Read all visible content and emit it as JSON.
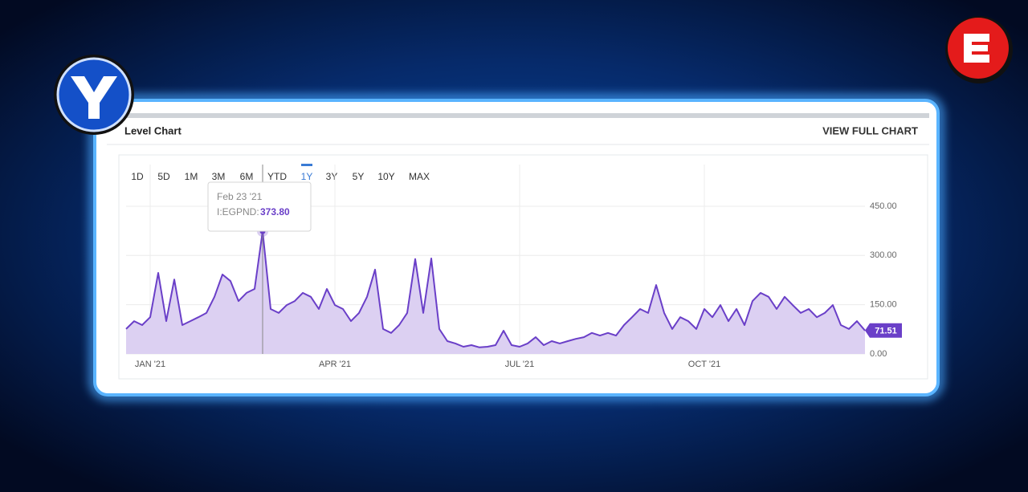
{
  "header": {
    "title": "Level Chart",
    "link": "VIEW FULL CHART"
  },
  "range_buttons": [
    "1D",
    "5D",
    "1M",
    "3M",
    "6M",
    "YTD",
    "1Y",
    "3Y",
    "5Y",
    "10Y",
    "MAX"
  ],
  "active_range": "1Y",
  "tooltip": {
    "date": "Feb 23 '21",
    "label": "I:EGPND:",
    "value": "373.80"
  },
  "chart_data": {
    "type": "line",
    "color": "#6a3fc8",
    "fill": "#dcd0f2",
    "categories": [
      null,
      null,
      null,
      "JAN '21",
      null,
      null,
      null,
      null,
      null,
      null,
      null,
      null,
      null,
      null,
      null,
      null,
      null,
      null,
      null,
      null,
      null,
      null,
      null,
      null,
      null,
      null,
      "APR '21",
      null,
      null,
      null,
      null,
      null,
      null,
      null,
      null,
      null,
      null,
      null,
      null,
      null,
      null,
      null,
      null,
      null,
      null,
      null,
      null,
      null,
      null,
      "JUL '21",
      null,
      null,
      null,
      null,
      null,
      null,
      null,
      null,
      null,
      null,
      null,
      null,
      null,
      null,
      null,
      null,
      null,
      null,
      null,
      null,
      null,
      null,
      "OCT '21",
      null,
      null,
      null,
      null,
      null,
      null,
      null,
      null,
      null,
      null,
      null,
      null,
      null,
      null,
      null,
      null,
      null,
      null,
      null,
      null
    ],
    "values": [
      76,
      100,
      88,
      112,
      247,
      100,
      227,
      88,
      100,
      112,
      125,
      174,
      242,
      222,
      161,
      186,
      198,
      373.8,
      137,
      125,
      149,
      161,
      186,
      174,
      137,
      198,
      149,
      137,
      100,
      125,
      174,
      257,
      76,
      64,
      88,
      125,
      289,
      125,
      291,
      76,
      39,
      32,
      22,
      27,
      20,
      22,
      27,
      71,
      27,
      22,
      32,
      51,
      27,
      39,
      32,
      39,
      46,
      51,
      64,
      56,
      64,
      56,
      88,
      112,
      137,
      125,
      210,
      125,
      76,
      112,
      100,
      76,
      137,
      112,
      149,
      100,
      137,
      88,
      161,
      186,
      174,
      137,
      174,
      149,
      125,
      137,
      112,
      125,
      149,
      88,
      76,
      100,
      71.51
    ],
    "ylim": [
      0,
      577
    ],
    "yticks": [
      {
        "value": 0,
        "label": "0.00"
      },
      {
        "value": 150,
        "label": "150.00"
      },
      {
        "value": 300,
        "label": "300.00"
      },
      {
        "value": 450,
        "label": "450.00"
      }
    ],
    "grid": true
  }
}
